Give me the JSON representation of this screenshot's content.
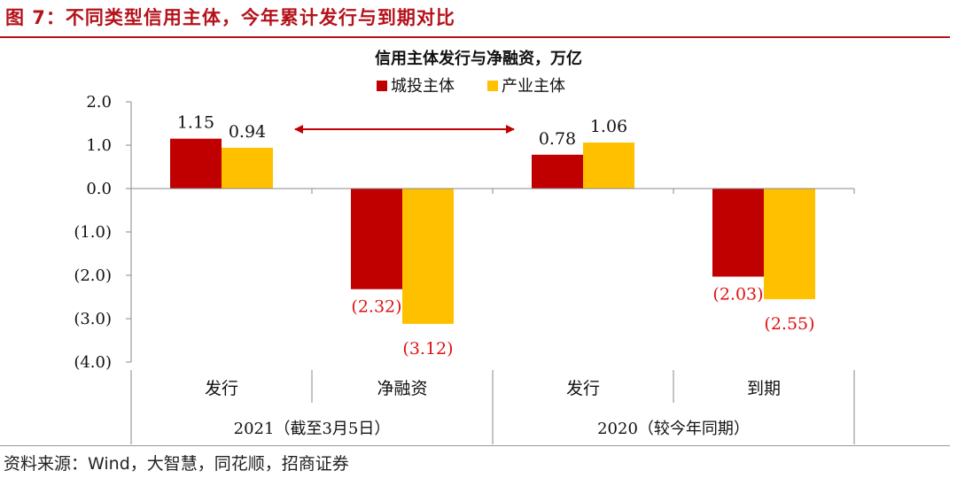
{
  "figure_title": "图 7：不同类型信用主体，今年累计发行与到期对比",
  "source": "资料来源：Wind，大智慧，同花顺，招商证券",
  "chart_data": {
    "type": "bar",
    "title": "信用主体发行与净融资，万亿",
    "xlabel": "",
    "ylabel": "",
    "ylim": [
      -4.0,
      2.0
    ],
    "yticks": [
      "2.0",
      "1.0",
      "0.0",
      "(1.0)",
      "(2.0)",
      "(3.0)",
      "(4.0)"
    ],
    "ytick_values": [
      2,
      1,
      0,
      -1,
      -2,
      -3,
      -4
    ],
    "grid": false,
    "legend_position": "top-center",
    "categories": [
      "发行",
      "净融资",
      "发行",
      "到期"
    ],
    "groups": [
      {
        "label": "2021（截至3月5日）",
        "span": [
          0,
          1
        ]
      },
      {
        "label": "2020（较今年同期）",
        "span": [
          2,
          3
        ]
      }
    ],
    "series": [
      {
        "name": "城投主体",
        "color": "#c00000",
        "values": [
          1.15,
          -2.32,
          0.78,
          -2.03
        ],
        "labels": [
          "1.15",
          "(2.32)",
          "0.78",
          "(2.03)"
        ]
      },
      {
        "name": "产业主体",
        "color": "#ffc000",
        "values": [
          0.94,
          -3.12,
          1.06,
          -2.55
        ],
        "labels": [
          "0.94",
          "(3.12)",
          "1.06",
          "(2.55)"
        ]
      }
    ],
    "negative_label_color": "#e01010",
    "annotation": "double-headed arrow between first and third category"
  }
}
